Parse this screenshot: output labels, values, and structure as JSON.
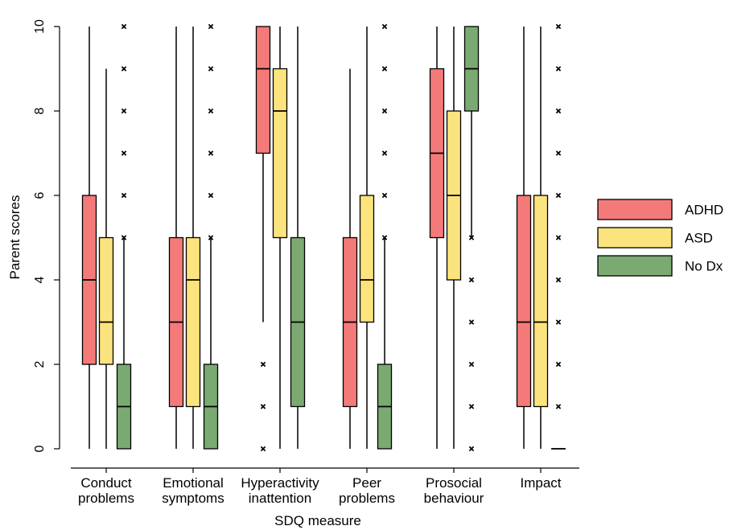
{
  "chart_data": {
    "type": "box",
    "title": "",
    "xlabel": "SDQ measure",
    "ylabel": "Parent scores",
    "ylim": [
      0,
      10
    ],
    "yticks": [
      0,
      2,
      4,
      6,
      8,
      10
    ],
    "grid": false,
    "legend_position": "right",
    "categories": [
      "Conduct\nproblems",
      "Emotional\nsymptoms",
      "Hyperactivity\ninattention",
      "Peer\nproblems",
      "Prosocial\nbehaviour",
      "Impact"
    ],
    "series": [
      {
        "name": "ADHD",
        "color": "#f47a7a",
        "boxes": [
          {
            "whisker_low": 0,
            "q1": 2,
            "median": 4,
            "q3": 6,
            "whisker_high": 10,
            "outliers": []
          },
          {
            "whisker_low": 0,
            "q1": 1,
            "median": 3,
            "q3": 5,
            "whisker_high": 10,
            "outliers": []
          },
          {
            "whisker_low": 3,
            "q1": 7,
            "median": 9,
            "q3": 10,
            "whisker_high": 10,
            "outliers": [
              0,
              1,
              2
            ]
          },
          {
            "whisker_low": 0,
            "q1": 1,
            "median": 3,
            "q3": 5,
            "whisker_high": 9,
            "outliers": []
          },
          {
            "whisker_low": 0,
            "q1": 5,
            "median": 7,
            "q3": 9,
            "whisker_high": 10,
            "outliers": []
          },
          {
            "whisker_low": 0,
            "q1": 1,
            "median": 3,
            "q3": 6,
            "whisker_high": 10,
            "outliers": []
          }
        ]
      },
      {
        "name": "ASD",
        "color": "#fbe37e",
        "boxes": [
          {
            "whisker_low": 0,
            "q1": 2,
            "median": 3,
            "q3": 5,
            "whisker_high": 9,
            "outliers": []
          },
          {
            "whisker_low": 0,
            "q1": 1,
            "median": 4,
            "q3": 5,
            "whisker_high": 10,
            "outliers": []
          },
          {
            "whisker_low": 0,
            "q1": 5,
            "median": 8,
            "q3": 9,
            "whisker_high": 10,
            "outliers": []
          },
          {
            "whisker_low": 0,
            "q1": 3,
            "median": 4,
            "q3": 6,
            "whisker_high": 10,
            "outliers": []
          },
          {
            "whisker_low": 0,
            "q1": 4,
            "median": 6,
            "q3": 8,
            "whisker_high": 10,
            "outliers": []
          },
          {
            "whisker_low": 0,
            "q1": 1,
            "median": 3,
            "q3": 6,
            "whisker_high": 10,
            "outliers": []
          }
        ]
      },
      {
        "name": "No Dx",
        "color": "#7aaa72",
        "boxes": [
          {
            "whisker_low": 0,
            "q1": 0,
            "median": 1,
            "q3": 2,
            "whisker_high": 5,
            "outliers": [
              5,
              6,
              7,
              8,
              9,
              10
            ]
          },
          {
            "whisker_low": 0,
            "q1": 0,
            "median": 1,
            "q3": 2,
            "whisker_high": 5,
            "outliers": [
              5,
              6,
              7,
              8,
              9,
              10
            ]
          },
          {
            "whisker_low": 0,
            "q1": 1,
            "median": 3,
            "q3": 5,
            "whisker_high": 10,
            "outliers": []
          },
          {
            "whisker_low": 0,
            "q1": 0,
            "median": 1,
            "q3": 2,
            "whisker_high": 5,
            "outliers": [
              5,
              6,
              7,
              8,
              9,
              10
            ]
          },
          {
            "whisker_low": 5,
            "q1": 8,
            "median": 9,
            "q3": 10,
            "whisker_high": 10,
            "outliers": [
              0,
              1,
              2,
              3,
              4,
              5
            ]
          },
          {
            "whisker_low": 0,
            "q1": 0,
            "median": 0,
            "q3": 0,
            "whisker_high": 0,
            "outliers": [
              1,
              2,
              3,
              4,
              5,
              6,
              7,
              8,
              9,
              10
            ]
          }
        ]
      }
    ]
  }
}
